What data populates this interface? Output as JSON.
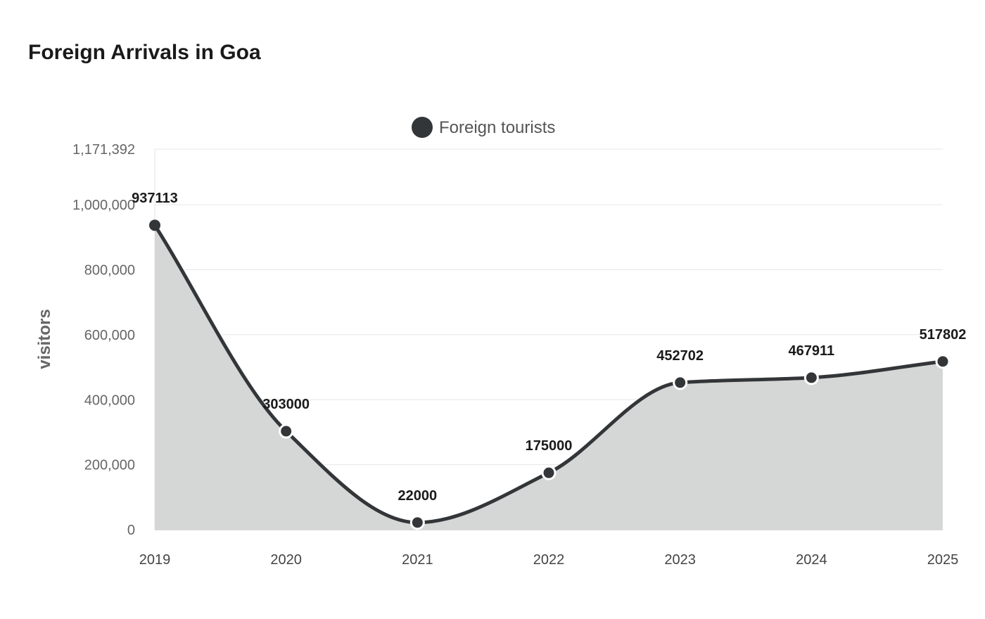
{
  "chart_data": {
    "type": "area",
    "title": "Foreign Arrivals in Goa",
    "ylabel": "visitors",
    "xlabel": "",
    "categories": [
      "2019",
      "2020",
      "2021",
      "2022",
      "2023",
      "2024",
      "2025"
    ],
    "series": [
      {
        "name": "Foreign tourists",
        "values": [
          937113,
          303000,
          22000,
          175000,
          452702,
          467911,
          517802
        ],
        "color": "#333638",
        "fill": "#d5d6d6"
      }
    ],
    "ylim": [
      0,
      1171392
    ],
    "yticks": [
      {
        "value": 0,
        "label": "0"
      },
      {
        "value": 200000,
        "label": "200,000"
      },
      {
        "value": 400000,
        "label": "400,000"
      },
      {
        "value": 600000,
        "label": "600,000"
      },
      {
        "value": 800000,
        "label": "800,000"
      },
      {
        "value": 1000000,
        "label": "1,000,000"
      },
      {
        "value": 1171392,
        "label": "1,171,392"
      }
    ],
    "grid": true,
    "legend_position": "top-center",
    "data_labels": true,
    "curve": "smooth"
  }
}
